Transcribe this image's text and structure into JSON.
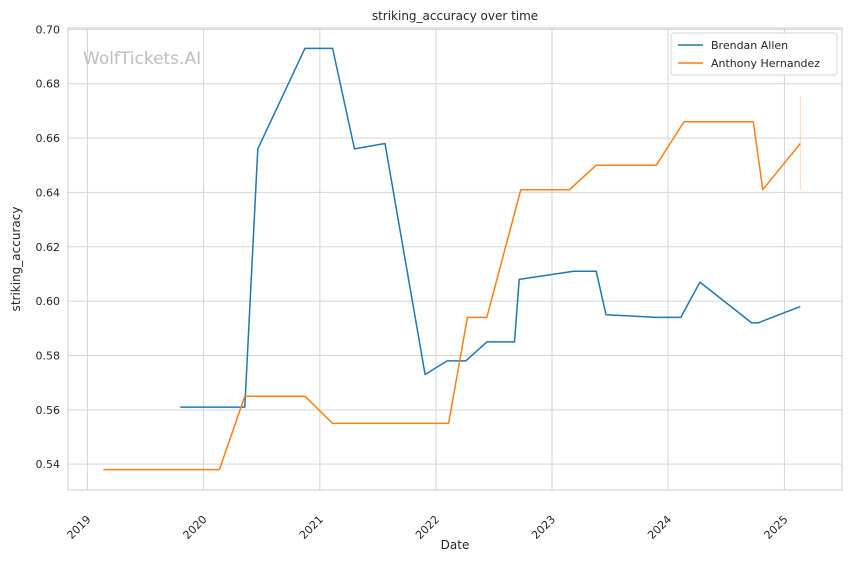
{
  "chart_data": {
    "type": "line",
    "title": "striking_accuracy over time",
    "xlabel": "Date",
    "ylabel": "striking_accuracy",
    "watermark": "WolfTickets.AI",
    "xlim": [
      "2018-11-01",
      "2025-07-01"
    ],
    "ylim": [
      0.5305,
      0.7005
    ],
    "x_ticks": [
      {
        "label": "2019",
        "date": "2019-01-01"
      },
      {
        "label": "2020",
        "date": "2020-01-01"
      },
      {
        "label": "2021",
        "date": "2021-01-01"
      },
      {
        "label": "2022",
        "date": "2022-01-01"
      },
      {
        "label": "2023",
        "date": "2023-01-01"
      },
      {
        "label": "2024",
        "date": "2024-01-01"
      },
      {
        "label": "2025",
        "date": "2025-01-01"
      }
    ],
    "y_ticks": [
      0.54,
      0.56,
      0.58,
      0.6,
      0.62,
      0.64,
      0.66,
      0.68,
      0.7
    ],
    "grid": true,
    "legend_position": "top-right",
    "series": [
      {
        "name": "Brendan Allen",
        "color": "#1f77b4",
        "points": [
          [
            "2019-10-20",
            0.561
          ],
          [
            "2020-05-10",
            0.561
          ],
          [
            "2020-06-20",
            0.656
          ],
          [
            "2020-11-15",
            0.693
          ],
          [
            "2021-02-10",
            0.693
          ],
          [
            "2021-04-20",
            0.656
          ],
          [
            "2021-07-25",
            0.658
          ],
          [
            "2021-11-28",
            0.573
          ],
          [
            "2022-02-05",
            0.578
          ],
          [
            "2022-04-05",
            0.578
          ],
          [
            "2022-06-10",
            0.585
          ],
          [
            "2022-09-05",
            0.585
          ],
          [
            "2022-09-20",
            0.608
          ],
          [
            "2023-03-10",
            0.611
          ],
          [
            "2023-05-20",
            0.611
          ],
          [
            "2023-06-20",
            0.595
          ],
          [
            "2023-11-25",
            0.594
          ],
          [
            "2024-02-10",
            0.594
          ],
          [
            "2024-04-10",
            0.607
          ],
          [
            "2024-09-20",
            0.592
          ],
          [
            "2024-10-10",
            0.592
          ],
          [
            "2025-02-20",
            0.598
          ]
        ]
      },
      {
        "name": "Anthony Hernandez",
        "color": "#ff7f0e",
        "points": [
          [
            "2019-02-20",
            0.538
          ],
          [
            "2020-02-20",
            0.538
          ],
          [
            "2020-05-10",
            0.565
          ],
          [
            "2020-11-15",
            0.565
          ],
          [
            "2021-02-10",
            0.555
          ],
          [
            "2022-02-10",
            0.555
          ],
          [
            "2022-04-10",
            0.594
          ],
          [
            "2022-06-10",
            0.594
          ],
          [
            "2022-09-25",
            0.641
          ],
          [
            "2023-02-25",
            0.641
          ],
          [
            "2023-05-20",
            0.65
          ],
          [
            "2023-11-25",
            0.65
          ],
          [
            "2024-02-20",
            0.666
          ],
          [
            "2024-09-25",
            0.666
          ],
          [
            "2024-10-25",
            0.641
          ],
          [
            "2025-02-20",
            0.658
          ]
        ],
        "band": {
          "date": "2025-02-20",
          "low": 0.641,
          "high": 0.675
        }
      }
    ]
  }
}
